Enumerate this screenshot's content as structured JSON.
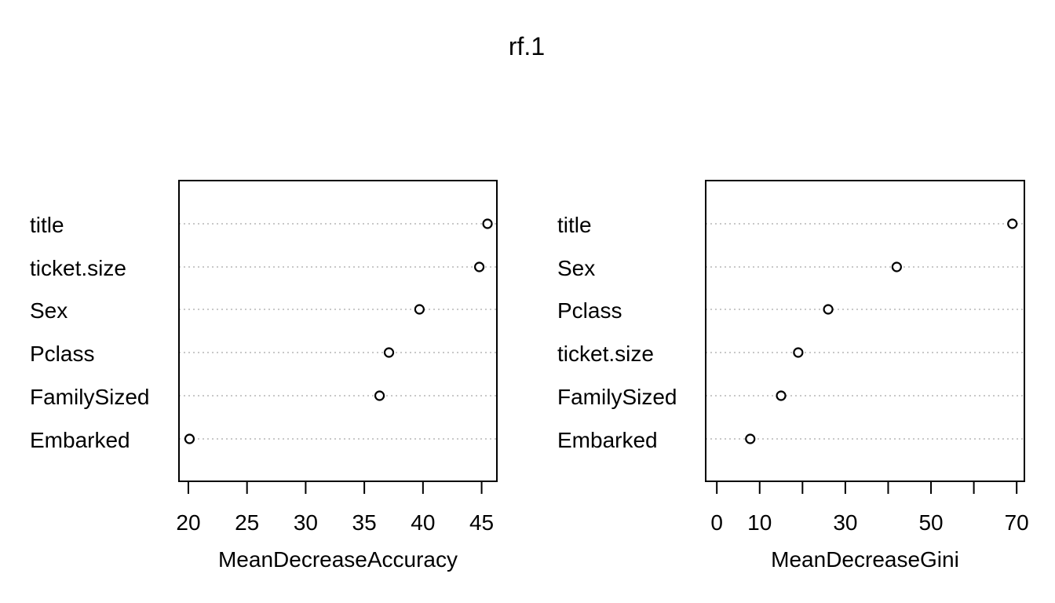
{
  "title": "rf.1",
  "chart_data": [
    {
      "type": "scatter",
      "variant": "dotchart",
      "categories": [
        "title",
        "ticket.size",
        "Sex",
        "Pclass",
        "FamilySized",
        "Embarked"
      ],
      "values": [
        45.5,
        44.8,
        39.7,
        37.1,
        36.3,
        20.1
      ],
      "xlabel": "MeanDecreaseAccuracy",
      "xticks": [
        20,
        25,
        30,
        35,
        40,
        45
      ],
      "xlim": [
        19.2,
        46.3
      ],
      "grid": "dotted horizontal guides"
    },
    {
      "type": "scatter",
      "variant": "dotchart",
      "categories": [
        "title",
        "Sex",
        "Pclass",
        "ticket.size",
        "FamilySized",
        "Embarked"
      ],
      "values": [
        69.0,
        42.0,
        26.0,
        19.0,
        15.0,
        7.8
      ],
      "xlabel": "MeanDecreaseGini",
      "xticks": [
        0,
        10,
        20,
        30,
        40,
        50,
        60,
        70
      ],
      "xtick_labels": [
        "0",
        "10",
        "",
        "30",
        "",
        "50",
        "",
        "70"
      ],
      "xlim": [
        -2.6,
        71.8
      ],
      "grid": "dotted horizontal guides"
    }
  ]
}
